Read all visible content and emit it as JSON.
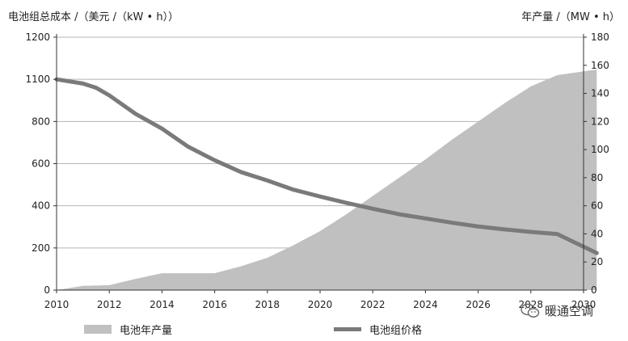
{
  "chart_data": {
    "type": "area+line",
    "ylabel_left": "电池组总成本 /（美元 /（kW • h））",
    "ylabel_right": "年产量 /（MW • h）",
    "x_ticks": [
      "2010",
      "2012",
      "2014",
      "2016",
      "2018",
      "2020",
      "2022",
      "2024",
      "2026",
      "2028",
      "2030"
    ],
    "y_left_ticks": [
      "0",
      "200",
      "400",
      "600",
      "800",
      "1100",
      "1200"
    ],
    "y_right_ticks": [
      "0",
      "20",
      "40",
      "60",
      "80",
      "100",
      "120",
      "140",
      "160",
      "180"
    ],
    "xlim": [
      2010,
      2030
    ],
    "ylim_right": [
      0,
      180
    ],
    "grid": "horizontal",
    "legend_position": "bottom",
    "series": [
      {
        "name": "电池年产量",
        "type": "area",
        "axis": "right",
        "color": "#c0c0c0",
        "x": [
          2010,
          2011,
          2012,
          2013,
          2014,
          2015,
          2016,
          2017,
          2018,
          2019,
          2020,
          2021,
          2022,
          2023,
          2024,
          2025,
          2026,
          2027,
          2028,
          2029,
          2030.5
        ],
        "y": [
          0,
          3,
          3.5,
          8,
          12,
          12,
          12,
          17,
          23,
          32,
          42,
          54,
          67,
          80,
          93,
          107,
          120,
          133,
          145,
          153,
          157
        ]
      },
      {
        "name": "电池组价格",
        "type": "line",
        "axis": "left",
        "color": "#7a7a7a",
        "x": [
          2010,
          2011,
          2011.5,
          2012,
          2013,
          2014,
          2015,
          2016,
          2017,
          2018,
          2019,
          2020,
          2021,
          2022,
          2023,
          2024,
          2025,
          2026,
          2027,
          2028,
          2029,
          2030.5
        ],
        "y_tick_position": [
          5.0,
          4.9,
          4.8,
          4.62,
          4.18,
          3.83,
          3.4,
          3.08,
          2.8,
          2.6,
          2.38,
          2.22,
          2.07,
          1.93,
          1.8,
          1.7,
          1.6,
          1.51,
          1.44,
          1.38,
          1.33,
          0.88
        ]
      }
    ]
  },
  "legend": {
    "production": "电池年产量",
    "price": "电池组价格"
  },
  "watermark": "暖通空调"
}
